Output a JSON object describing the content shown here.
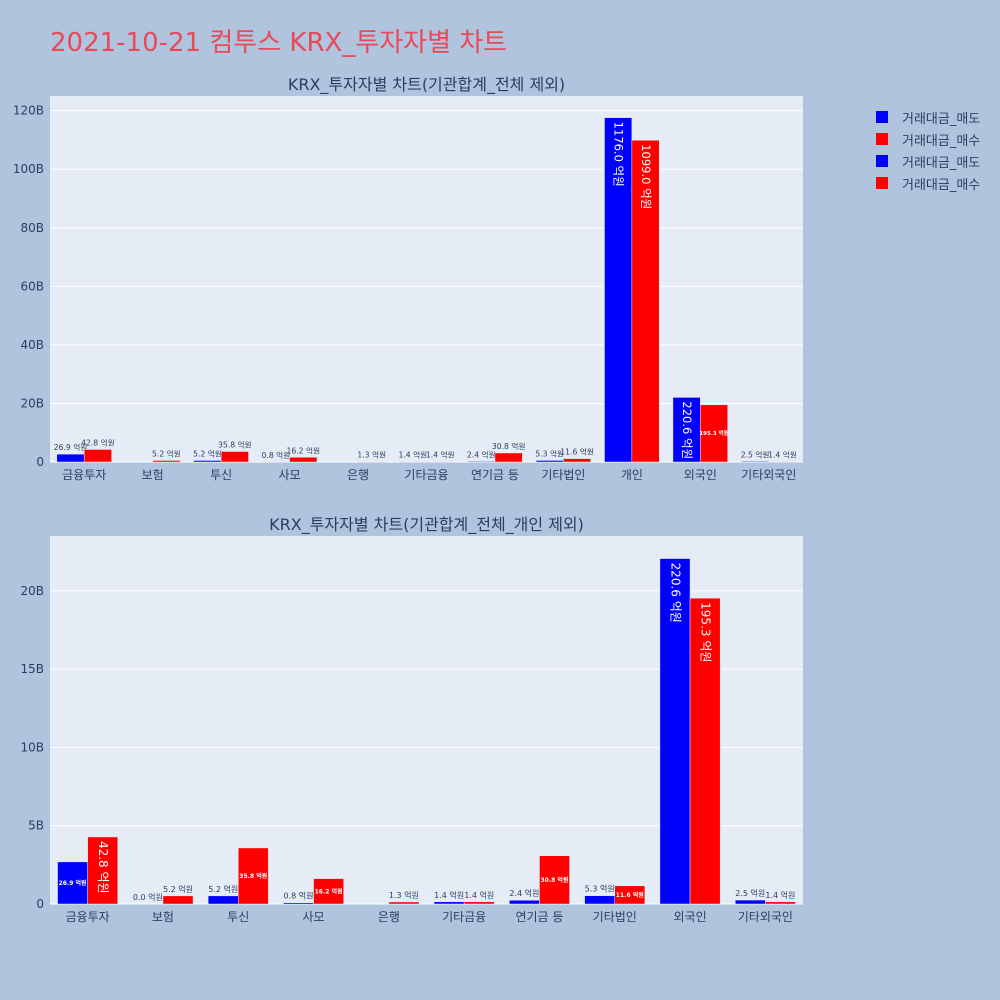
{
  "title": "2021-10-21 컴투스 KRX_투자자별 차트",
  "colors": {
    "sell": "#0000ff",
    "buy": "#ff0000"
  },
  "legend": [
    {
      "label": "거래대금_매도",
      "color": "#0000ff"
    },
    {
      "label": "거래대금_매수",
      "color": "#ff0000"
    },
    {
      "label": "거래대금_매도",
      "color": "#0000ff"
    },
    {
      "label": "거래대금_매수",
      "color": "#ff0000"
    }
  ],
  "chart_data": [
    {
      "type": "bar",
      "title": "KRX_투자자별 차트(기관합계_전체 제외)",
      "categories": [
        "금융투자",
        "보험",
        "투신",
        "사모",
        "은행",
        "기타금융",
        "연기금 등",
        "기타법인",
        "개인",
        "외국인",
        "기타외국인"
      ],
      "ylim": [
        0,
        125
      ],
      "yticks": [
        0,
        20,
        40,
        60,
        80,
        100,
        120
      ],
      "ytick_labels": [
        "0",
        "20B",
        "40B",
        "60B",
        "80B",
        "100B",
        "120B"
      ],
      "series": [
        {
          "name": "거래대금_매도",
          "values": [
            2.69,
            0,
            0.52,
            0.08,
            0,
            0.14,
            0.24,
            0.53,
            117.6,
            22.06,
            0.25
          ],
          "labels": [
            "26.9 억원",
            "",
            "5.2 억원",
            "0.8 억원",
            "",
            "1.4 억원",
            "2.4 억원",
            "5.3 억원",
            "1176.0 억원",
            "220.6 억원",
            "2.5 억원"
          ]
        },
        {
          "name": "거래대금_매수",
          "values": [
            4.28,
            0.52,
            3.58,
            1.62,
            0.13,
            0.14,
            3.08,
            1.16,
            109.9,
            19.53,
            0.14
          ],
          "labels": [
            "42.8 억원",
            "5.2 억원",
            "35.8 억원",
            "16.2 억원",
            "1.3 억원",
            "1.4 억원",
            "30.8 억원",
            "11.6 억원",
            "1099.0 억원",
            "195.3 억원",
            "1.4 억원"
          ]
        }
      ]
    },
    {
      "type": "bar",
      "title": "KRX_투자자별 차트(기관합계_전체_개인 제외)",
      "categories": [
        "금융투자",
        "보험",
        "투신",
        "사모",
        "은행",
        "기타금융",
        "연기금 등",
        "기타법인",
        "외국인",
        "기타외국인"
      ],
      "ylim": [
        0,
        23.5
      ],
      "yticks": [
        0,
        5,
        10,
        15,
        20
      ],
      "ytick_labels": [
        "0",
        "5B",
        "10B",
        "15B",
        "20B"
      ],
      "series": [
        {
          "name": "거래대금_매도",
          "values": [
            2.69,
            0,
            0.52,
            0.08,
            0,
            0.14,
            0.24,
            0.53,
            22.06,
            0.25
          ],
          "labels": [
            "26.9 억원",
            "0.0 억원",
            "5.2 억원",
            "0.8 억원",
            "",
            "1.4 억원",
            "2.4 억원",
            "5.3 억원",
            "220.6 억원",
            "2.5 억원"
          ]
        },
        {
          "name": "거래대금_매수",
          "values": [
            4.28,
            0.52,
            3.58,
            1.62,
            0.13,
            0.14,
            3.08,
            1.16,
            19.53,
            0.14
          ],
          "labels": [
            "42.8 억원",
            "5.2 억원",
            "35.8 억원",
            "16.2 억원",
            "1.3 억원",
            "1.4 억원",
            "30.8 억원",
            "11.6 억원",
            "195.3 억원",
            "1.4 억원"
          ]
        }
      ]
    }
  ]
}
